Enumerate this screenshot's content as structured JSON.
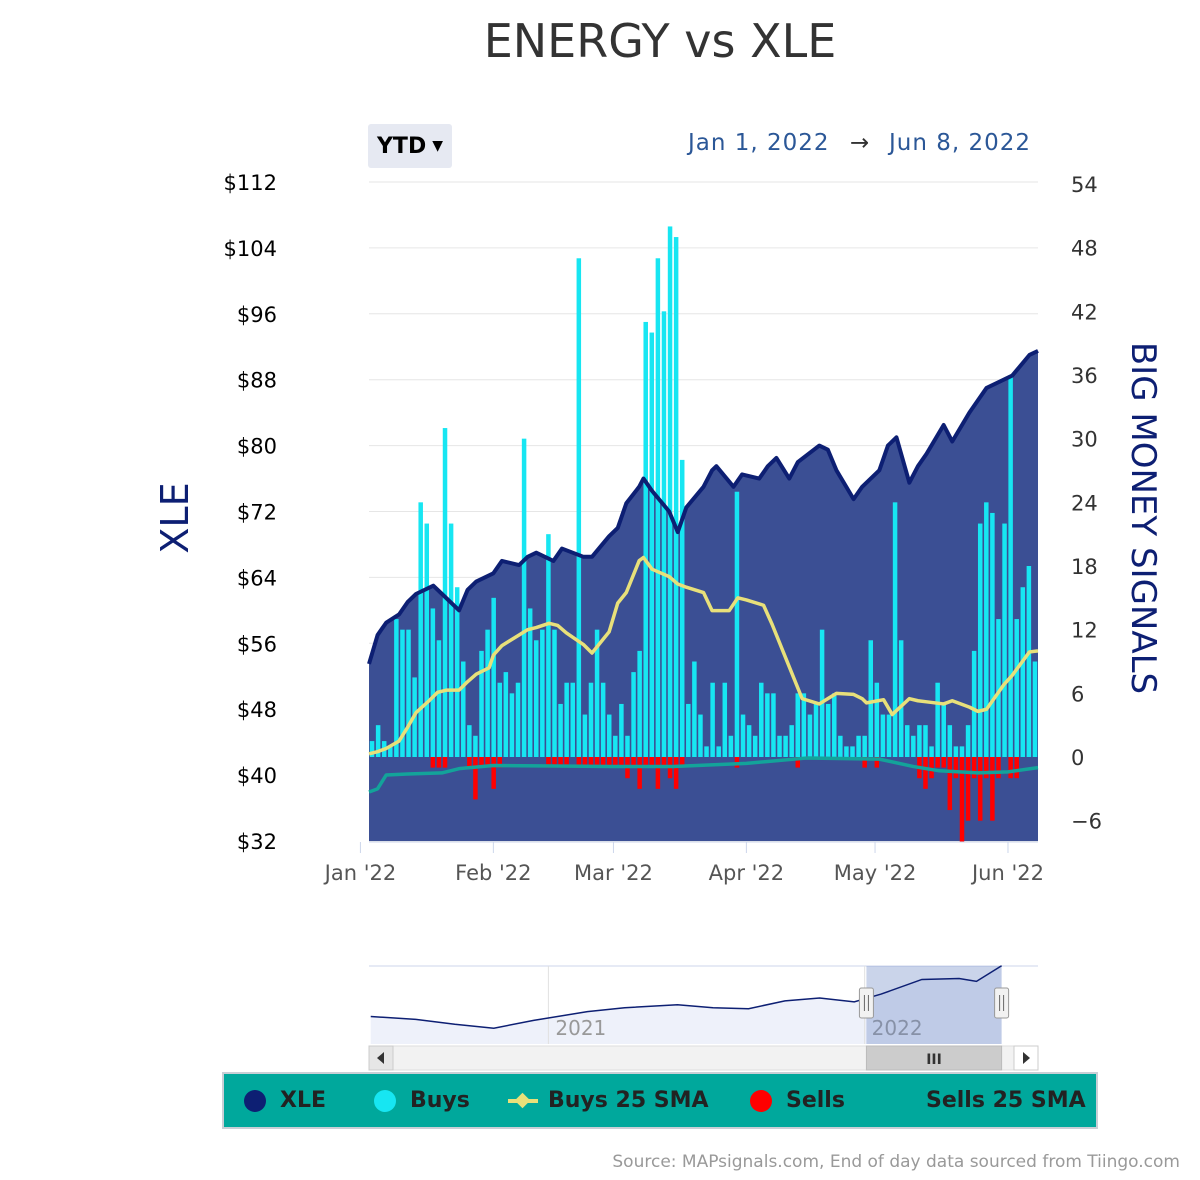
{
  "title": "ENERGY vs XLE",
  "range_selector": {
    "label": "YTD",
    "from": "Jan 1, 2022",
    "arrow": "→",
    "to": "Jun 8, 2022"
  },
  "colors": {
    "xle": "#0d1f73",
    "xle_fill": "#3b4f94",
    "buys": "#17e6f2",
    "buys_sma": "#e8e07a",
    "sells": "#ff0000",
    "sells_sma": "#13a39a",
    "legend_bg": "#00a89c"
  },
  "legend": [
    {
      "label": "XLE",
      "color": "#0d1f73",
      "symbol": "dot"
    },
    {
      "label": "Buys",
      "color": "#17e6f2",
      "symbol": "dot"
    },
    {
      "label": "Buys 25 SMA",
      "color": "#e8e07a",
      "symbol": "line"
    },
    {
      "label": "Sells",
      "color": "#ff0000",
      "symbol": "dot"
    },
    {
      "label": "Sells 25 SMA",
      "color": "#13a39a",
      "symbol": "none"
    }
  ],
  "source": "Source: MAPsignals.com, End of day data sourced from Tiingo.com",
  "chart_data": {
    "type": "line",
    "x_start": "2022-01-03",
    "x_end": "2022-06-08",
    "x_ticks": [
      {
        "date": "2022-01-01",
        "label": "Jan '22"
      },
      {
        "date": "2022-02-01",
        "label": "Feb '22"
      },
      {
        "date": "2022-03-01",
        "label": "Mar '22"
      },
      {
        "date": "2022-04-01",
        "label": "Apr '22"
      },
      {
        "date": "2022-05-01",
        "label": "May '22"
      },
      {
        "date": "2022-06-01",
        "label": "Jun '22"
      }
    ],
    "y_left": {
      "label": "XLE",
      "min": 32,
      "max": 112,
      "ticks": [
        "$112",
        "$104",
        "$96",
        "$88",
        "$80",
        "$72",
        "$64",
        "$56",
        "$48",
        "$40",
        "$32"
      ]
    },
    "y_right": {
      "label": "BIG MONEY SIGNALS",
      "min": -9,
      "max": 54,
      "ticks": [
        "54",
        "48",
        "42",
        "36",
        "30",
        "24",
        "18",
        "12",
        "6",
        "0",
        "−6"
      ]
    },
    "xle": [
      [
        "2022-01-03",
        53.5
      ],
      [
        "2022-01-05",
        57
      ],
      [
        "2022-01-07",
        58.5
      ],
      [
        "2022-01-10",
        59.5
      ],
      [
        "2022-01-12",
        61
      ],
      [
        "2022-01-14",
        62
      ],
      [
        "2022-01-18",
        63
      ],
      [
        "2022-01-20",
        62
      ],
      [
        "2022-01-24",
        60
      ],
      [
        "2022-01-26",
        62.5
      ],
      [
        "2022-01-28",
        63.5
      ],
      [
        "2022-02-01",
        64.5
      ],
      [
        "2022-02-03",
        66
      ],
      [
        "2022-02-07",
        65.5
      ],
      [
        "2022-02-09",
        66.5
      ],
      [
        "2022-02-11",
        67
      ],
      [
        "2022-02-15",
        66
      ],
      [
        "2022-02-17",
        67.5
      ],
      [
        "2022-02-22",
        66.5
      ],
      [
        "2022-02-24",
        66.5
      ],
      [
        "2022-02-28",
        69
      ],
      [
        "2022-03-02",
        70
      ],
      [
        "2022-03-04",
        73
      ],
      [
        "2022-03-07",
        75
      ],
      [
        "2022-03-08",
        76
      ],
      [
        "2022-03-10",
        74.5
      ],
      [
        "2022-03-14",
        72
      ],
      [
        "2022-03-16",
        69.5
      ],
      [
        "2022-03-18",
        72.5
      ],
      [
        "2022-03-22",
        75
      ],
      [
        "2022-03-24",
        77
      ],
      [
        "2022-03-25",
        77.5
      ],
      [
        "2022-03-29",
        75
      ],
      [
        "2022-03-31",
        76.5
      ],
      [
        "2022-04-04",
        76
      ],
      [
        "2022-04-06",
        77.5
      ],
      [
        "2022-04-08",
        78.5
      ],
      [
        "2022-04-11",
        76
      ],
      [
        "2022-04-13",
        78
      ],
      [
        "2022-04-18",
        80
      ],
      [
        "2022-04-20",
        79.5
      ],
      [
        "2022-04-22",
        77
      ],
      [
        "2022-04-26",
        73.5
      ],
      [
        "2022-04-28",
        75
      ],
      [
        "2022-05-02",
        77
      ],
      [
        "2022-05-04",
        80
      ],
      [
        "2022-05-06",
        81
      ],
      [
        "2022-05-09",
        75.5
      ],
      [
        "2022-05-11",
        77.5
      ],
      [
        "2022-05-13",
        79
      ],
      [
        "2022-05-17",
        82.5
      ],
      [
        "2022-05-19",
        80.5
      ],
      [
        "2022-05-23",
        84
      ],
      [
        "2022-05-25",
        85.5
      ],
      [
        "2022-05-27",
        87
      ],
      [
        "2022-05-31",
        88
      ],
      [
        "2022-06-02",
        88.5
      ],
      [
        "2022-06-06",
        91
      ],
      [
        "2022-06-08",
        91.5
      ]
    ],
    "buys": [
      [
        1,
        1.5
      ],
      [
        2,
        3
      ],
      [
        3,
        1.5
      ],
      [
        4,
        1
      ],
      [
        5,
        13
      ],
      [
        6,
        12
      ],
      [
        7,
        12
      ],
      [
        8,
        7.5
      ],
      [
        9,
        24
      ],
      [
        10,
        22
      ],
      [
        11,
        14
      ],
      [
        12,
        11
      ],
      [
        13,
        31
      ],
      [
        14,
        22
      ],
      [
        15,
        16
      ],
      [
        16,
        9
      ],
      [
        17,
        3
      ],
      [
        18,
        2
      ],
      [
        19,
        10
      ],
      [
        20,
        12
      ],
      [
        21,
        15
      ],
      [
        22,
        7
      ],
      [
        23,
        8
      ],
      [
        24,
        6
      ],
      [
        25,
        7
      ],
      [
        26,
        30
      ],
      [
        27,
        14
      ],
      [
        28,
        11
      ],
      [
        29,
        12
      ],
      [
        30,
        21
      ],
      [
        31,
        12
      ],
      [
        32,
        5
      ],
      [
        33,
        7
      ],
      [
        34,
        7
      ],
      [
        35,
        47
      ],
      [
        36,
        4
      ],
      [
        37,
        7
      ],
      [
        38,
        12
      ],
      [
        39,
        7
      ],
      [
        40,
        4
      ],
      [
        41,
        2
      ],
      [
        42,
        5
      ],
      [
        43,
        2
      ],
      [
        44,
        8
      ],
      [
        45,
        10
      ],
      [
        46,
        41
      ],
      [
        47,
        40
      ],
      [
        48,
        47
      ],
      [
        49,
        42
      ],
      [
        50,
        50
      ],
      [
        51,
        49
      ],
      [
        52,
        28
      ],
      [
        53,
        5
      ],
      [
        54,
        9
      ],
      [
        55,
        4
      ],
      [
        56,
        1
      ],
      [
        57,
        7
      ],
      [
        58,
        1
      ],
      [
        59,
        7
      ],
      [
        60,
        2
      ],
      [
        61,
        25
      ],
      [
        62,
        4
      ],
      [
        63,
        3
      ],
      [
        64,
        2
      ],
      [
        65,
        7
      ],
      [
        66,
        6
      ],
      [
        67,
        6
      ],
      [
        68,
        2
      ],
      [
        69,
        2
      ],
      [
        70,
        3
      ],
      [
        71,
        6
      ],
      [
        72,
        6
      ],
      [
        73,
        4
      ],
      [
        74,
        5
      ],
      [
        75,
        12
      ],
      [
        76,
        5
      ],
      [
        77,
        6
      ],
      [
        78,
        2
      ],
      [
        79,
        1
      ],
      [
        80,
        1
      ],
      [
        81,
        2
      ],
      [
        82,
        2
      ],
      [
        83,
        11
      ],
      [
        84,
        7
      ],
      [
        85,
        4
      ],
      [
        86,
        4
      ],
      [
        87,
        24
      ],
      [
        88,
        11
      ],
      [
        89,
        3
      ],
      [
        90,
        2
      ],
      [
        91,
        3
      ],
      [
        92,
        3
      ],
      [
        93,
        1
      ],
      [
        94,
        7
      ],
      [
        95,
        5
      ],
      [
        96,
        3
      ],
      [
        97,
        1
      ],
      [
        98,
        1
      ],
      [
        99,
        3
      ],
      [
        100,
        10
      ],
      [
        101,
        22
      ],
      [
        102,
        24
      ],
      [
        103,
        23
      ],
      [
        104,
        13
      ],
      [
        105,
        22
      ],
      [
        106,
        36
      ],
      [
        107,
        13
      ],
      [
        108,
        16
      ],
      [
        109,
        18
      ],
      [
        110,
        9
      ]
    ],
    "sells": [
      [
        11,
        -1
      ],
      [
        12,
        -1
      ],
      [
        13,
        -1
      ],
      [
        17,
        -1
      ],
      [
        18,
        -4
      ],
      [
        19,
        -1
      ],
      [
        20,
        -1
      ],
      [
        21,
        -3
      ],
      [
        22,
        -1
      ],
      [
        30,
        -1
      ],
      [
        31,
        -1
      ],
      [
        32,
        -1
      ],
      [
        33,
        -1
      ],
      [
        35,
        -1
      ],
      [
        36,
        -1
      ],
      [
        37,
        -1
      ],
      [
        38,
        -1
      ],
      [
        39,
        -1
      ],
      [
        40,
        -1
      ],
      [
        41,
        -1
      ],
      [
        42,
        -1
      ],
      [
        43,
        -2
      ],
      [
        44,
        -1
      ],
      [
        45,
        -3
      ],
      [
        46,
        -1
      ],
      [
        47,
        -1
      ],
      [
        48,
        -3
      ],
      [
        49,
        -1
      ],
      [
        50,
        -2
      ],
      [
        51,
        -3
      ],
      [
        52,
        -1
      ],
      [
        61,
        -1
      ],
      [
        71,
        -1
      ],
      [
        82,
        -1
      ],
      [
        84,
        -1
      ],
      [
        91,
        -2
      ],
      [
        92,
        -3
      ],
      [
        93,
        -2
      ],
      [
        94,
        -1
      ],
      [
        95,
        -1
      ],
      [
        96,
        -5
      ],
      [
        97,
        -2
      ],
      [
        98,
        -8
      ],
      [
        99,
        -6
      ],
      [
        100,
        -2
      ],
      [
        101,
        -6
      ],
      [
        102,
        -2
      ],
      [
        103,
        -6
      ],
      [
        104,
        -2
      ],
      [
        106,
        -2
      ],
      [
        107,
        -2
      ]
    ],
    "buys_sma": [
      [
        "2022-01-03",
        0.3
      ],
      [
        "2022-01-05",
        0.5
      ],
      [
        "2022-01-07",
        0.8
      ],
      [
        "2022-01-10",
        1.5
      ],
      [
        "2022-01-12",
        2.8
      ],
      [
        "2022-01-14",
        4.2
      ],
      [
        "2022-01-17",
        5.3
      ],
      [
        "2022-01-19",
        6.1
      ],
      [
        "2022-01-21",
        6.3
      ],
      [
        "2022-01-24",
        6.3
      ],
      [
        "2022-01-26",
        7.1
      ],
      [
        "2022-01-28",
        7.8
      ],
      [
        "2022-01-31",
        8.4
      ],
      [
        "2022-02-01",
        9.6
      ],
      [
        "2022-02-03",
        10.5
      ],
      [
        "2022-02-07",
        11.5
      ],
      [
        "2022-02-09",
        12
      ],
      [
        "2022-02-11",
        12.2
      ],
      [
        "2022-02-14",
        12.6
      ],
      [
        "2022-02-16",
        12.4
      ],
      [
        "2022-02-18",
        11.7
      ],
      [
        "2022-02-22",
        10.6
      ],
      [
        "2022-02-24",
        9.8
      ],
      [
        "2022-02-28",
        11.8
      ],
      [
        "2022-03-02",
        14.5
      ],
      [
        "2022-03-04",
        15.5
      ],
      [
        "2022-03-07",
        18.5
      ],
      [
        "2022-03-08",
        18.8
      ],
      [
        "2022-03-10",
        17.7
      ],
      [
        "2022-03-14",
        17
      ],
      [
        "2022-03-16",
        16.3
      ],
      [
        "2022-03-18",
        16
      ],
      [
        "2022-03-22",
        15.5
      ],
      [
        "2022-03-24",
        13.8
      ],
      [
        "2022-03-28",
        13.8
      ],
      [
        "2022-03-30",
        15
      ],
      [
        "2022-04-01",
        14.8
      ],
      [
        "2022-04-05",
        14.3
      ],
      [
        "2022-04-07",
        12.5
      ],
      [
        "2022-04-11",
        8.5
      ],
      [
        "2022-04-14",
        5.5
      ],
      [
        "2022-04-18",
        5
      ],
      [
        "2022-04-20",
        5.5
      ],
      [
        "2022-04-22",
        6
      ],
      [
        "2022-04-26",
        5.9
      ],
      [
        "2022-04-28",
        5.5
      ],
      [
        "2022-04-29",
        5.1
      ],
      [
        "2022-05-03",
        5.4
      ],
      [
        "2022-05-05",
        4
      ],
      [
        "2022-05-09",
        5.5
      ],
      [
        "2022-05-11",
        5.3
      ],
      [
        "2022-05-13",
        5.2
      ],
      [
        "2022-05-17",
        5
      ],
      [
        "2022-05-19",
        5.3
      ],
      [
        "2022-05-23",
        4.7
      ],
      [
        "2022-05-25",
        4.3
      ],
      [
        "2022-05-27",
        4.5
      ],
      [
        "2022-05-31",
        6.8
      ],
      [
        "2022-06-02",
        7.7
      ],
      [
        "2022-06-06",
        9.9
      ],
      [
        "2022-06-08",
        10
      ]
    ],
    "sells_sma": [
      [
        "2022-01-03",
        -3.3
      ],
      [
        "2022-01-05",
        -3
      ],
      [
        "2022-01-07",
        -1.7
      ],
      [
        "2022-01-12",
        -1.6
      ],
      [
        "2022-01-20",
        -1.5
      ],
      [
        "2022-01-24",
        -1.1
      ],
      [
        "2022-02-01",
        -0.8
      ],
      [
        "2022-03-01",
        -0.9
      ],
      [
        "2022-03-15",
        -0.9
      ],
      [
        "2022-04-01",
        -0.6
      ],
      [
        "2022-04-15",
        -0.1
      ],
      [
        "2022-05-02",
        -0.2
      ],
      [
        "2022-05-10",
        -0.9
      ],
      [
        "2022-05-16",
        -1.3
      ],
      [
        "2022-05-25",
        -1.5
      ],
      [
        "2022-06-01",
        -1.4
      ],
      [
        "2022-06-08",
        -1
      ]
    ]
  },
  "navigator": {
    "labels": [
      {
        "text": "2021",
        "date": "2021-01-01"
      },
      {
        "text": "2022",
        "date": "2022-01-01"
      }
    ],
    "start": "2020-06-08",
    "end": "2022-07-20",
    "window_start": "2022-01-03",
    "window_end": "2022-06-08",
    "series": [
      [
        "2020-06-10",
        40
      ],
      [
        "2020-08-01",
        37
      ],
      [
        "2020-09-15",
        32
      ],
      [
        "2020-10-30",
        28
      ],
      [
        "2020-12-15",
        36
      ],
      [
        "2021-02-15",
        45
      ],
      [
        "2021-03-30",
        49
      ],
      [
        "2021-05-30",
        52
      ],
      [
        "2021-07-10",
        49
      ],
      [
        "2021-08-20",
        48
      ],
      [
        "2021-10-01",
        56
      ],
      [
        "2021-11-10",
        59
      ],
      [
        "2021-12-20",
        55
      ],
      [
        "2022-01-20",
        63
      ],
      [
        "2022-03-08",
        78
      ],
      [
        "2022-04-20",
        79
      ],
      [
        "2022-05-10",
        76
      ],
      [
        "2022-06-08",
        92
      ]
    ],
    "scroll_grip": "III"
  }
}
